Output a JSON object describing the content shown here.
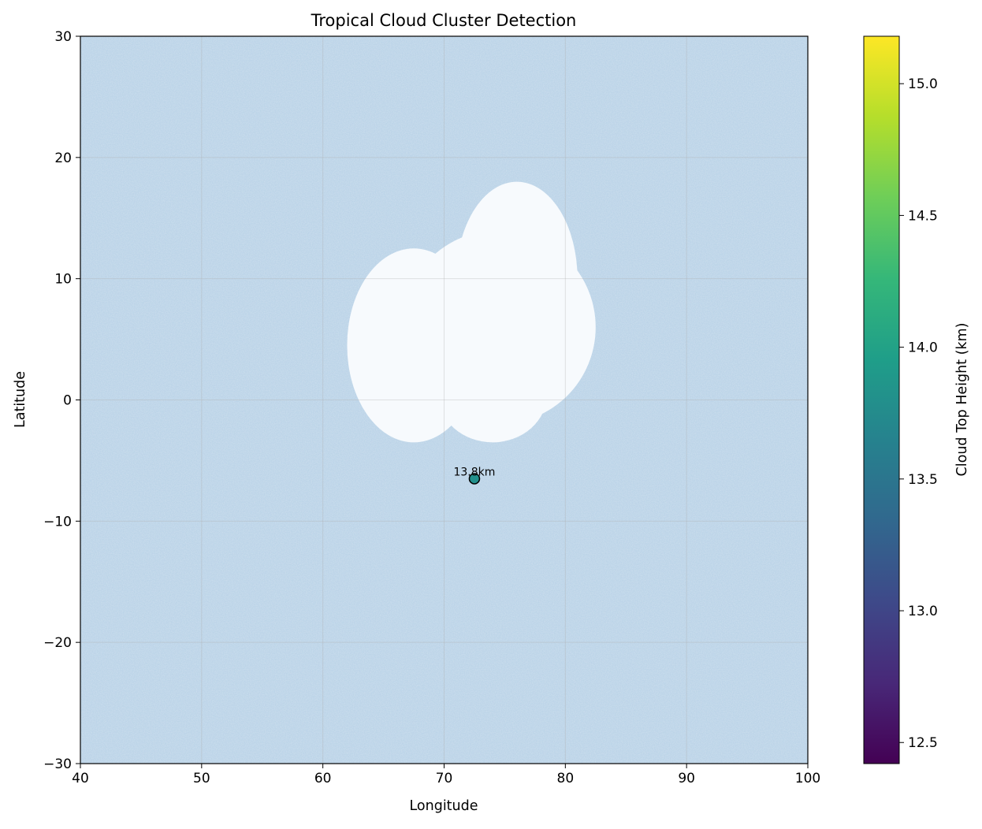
{
  "chart_data": {
    "type": "scatter",
    "title": "Tropical Cloud Cluster Detection",
    "xlabel": "Longitude",
    "ylabel": "Latitude",
    "xlim": [
      40,
      100
    ],
    "ylim": [
      -30,
      30
    ],
    "x_ticks": [
      40,
      50,
      60,
      70,
      80,
      90,
      100
    ],
    "y_ticks": [
      -30,
      -20,
      -10,
      0,
      10,
      20,
      30
    ],
    "y_tick_labels": [
      "−30",
      "−20",
      "−10",
      "0",
      "10",
      "20",
      "30"
    ],
    "grid": true,
    "background": {
      "description_colors": [
        "#bcd4e8",
        "#c9dcee",
        "#aac6df"
      ],
      "cloud_regions": [
        {
          "cx": 67.5,
          "cy": 4.5,
          "rx_deg": 5.5,
          "ry_deg": 8.0
        },
        {
          "cx": 76.0,
          "cy": 10.0,
          "rx_deg": 5.0,
          "ry_deg": 8.0
        },
        {
          "cx": 74.5,
          "cy": 6.0,
          "rx_deg": 8.0,
          "ry_deg": 8.0
        },
        {
          "cx": 74.0,
          "cy": 0.5,
          "rx_deg": 4.5,
          "ry_deg": 4.0
        }
      ],
      "cloud_color": "#f7fafd"
    },
    "points": [
      {
        "lon": 72.5,
        "lat": -6.5,
        "height_km": 13.8,
        "label": "13.8km"
      }
    ],
    "colorbar": {
      "label": "Cloud Top Height (km)",
      "min": 12.42,
      "max": 15.18,
      "ticks": [
        12.5,
        13.0,
        13.5,
        14.0,
        14.5,
        15.0
      ],
      "tick_labels": [
        "12.5",
        "13.0",
        "13.5",
        "14.0",
        "14.5",
        "15.0"
      ],
      "colormap": "viridis",
      "stops": [
        "#440154",
        "#482878",
        "#3e4989",
        "#31688e",
        "#26828e",
        "#1f9e89",
        "#35b779",
        "#6ece58",
        "#b5de2b",
        "#fde725"
      ]
    }
  }
}
